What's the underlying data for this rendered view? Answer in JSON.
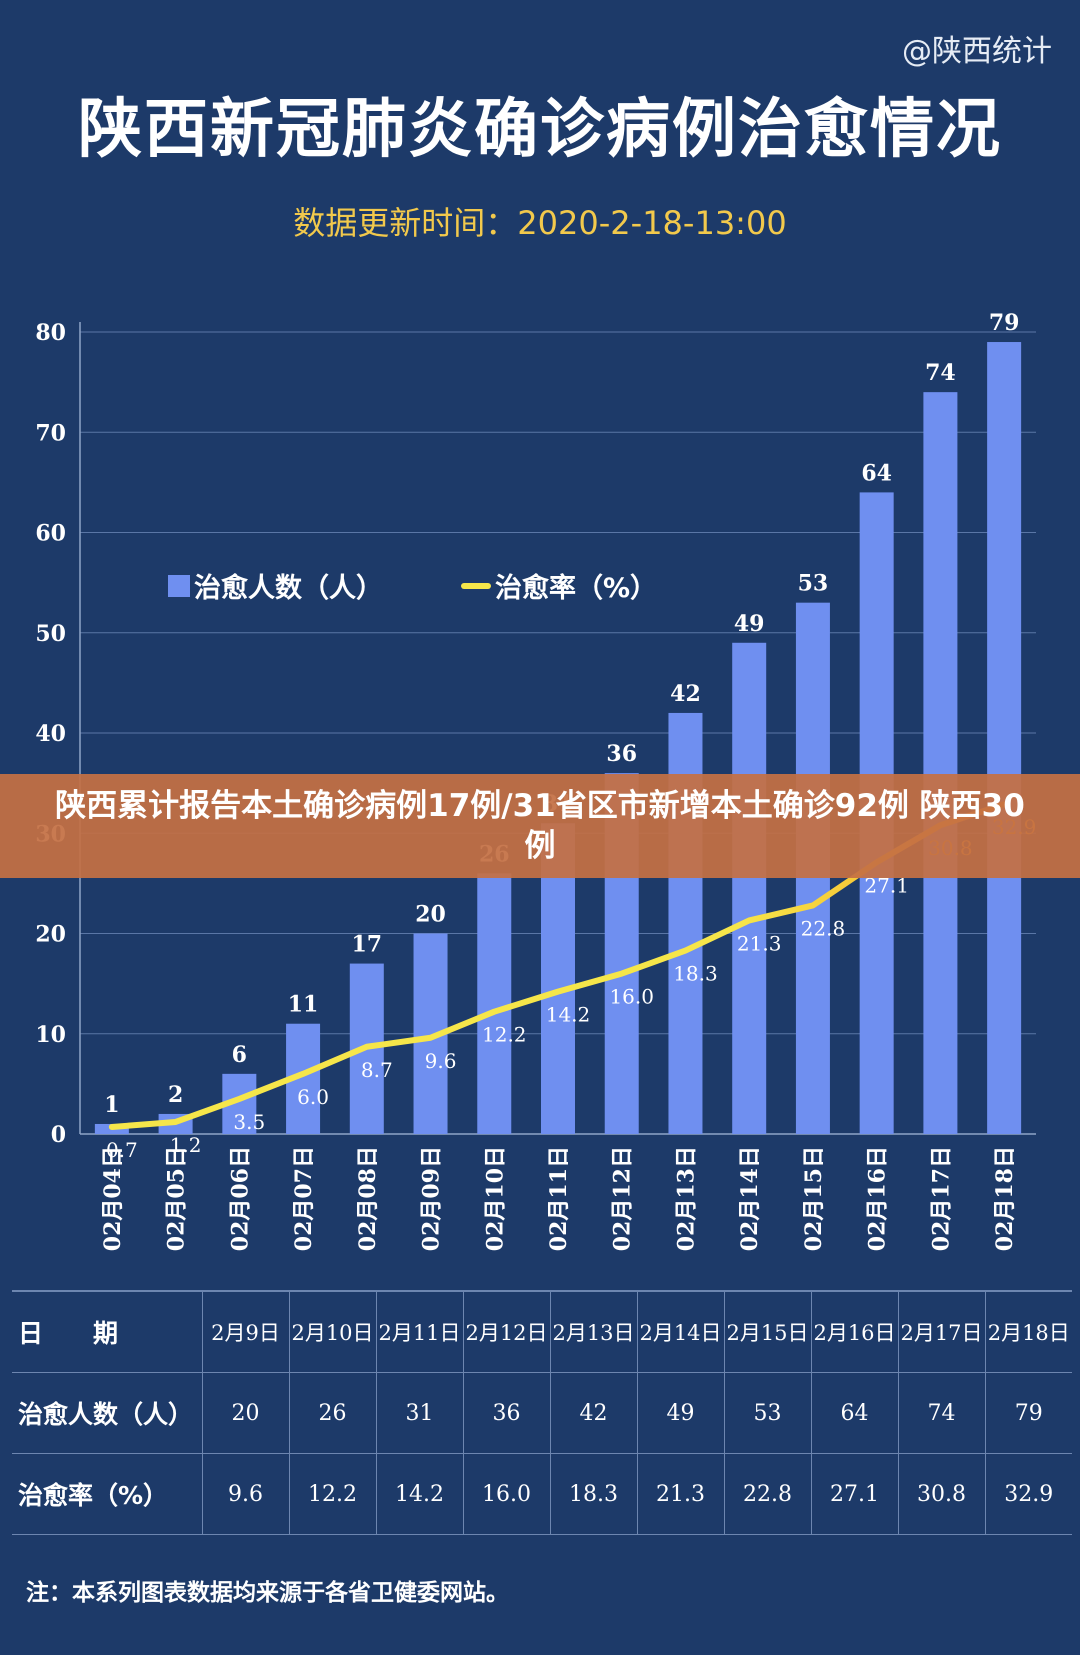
{
  "source_tag": "@陕西统计",
  "title": "陕西新冠肺炎确诊病例治愈情况",
  "update_time": "数据更新时间：2020-2-18-13:00",
  "legend": {
    "bars": "治愈人数（人）",
    "line": "治愈率（%）"
  },
  "banner": "陕西累计报告本土确诊病例17例/31省区市新增本土确诊92例 陕西30例",
  "chart_data": {
    "type": "bar",
    "categories": [
      "02月04日",
      "02月05日",
      "02月06日",
      "02月07日",
      "02月08日",
      "02月09日",
      "02月10日",
      "02月11日",
      "02月12日",
      "02月13日",
      "02月14日",
      "02月15日",
      "02月16日",
      "02月17日",
      "02月18日"
    ],
    "series": [
      {
        "name": "治愈人数（人）",
        "type": "bar",
        "values": [
          1,
          2,
          6,
          11,
          17,
          20,
          26,
          31,
          36,
          42,
          49,
          53,
          64,
          74,
          79
        ]
      },
      {
        "name": "治愈率（%）",
        "type": "line",
        "values": [
          0.7,
          1.2,
          3.5,
          6.0,
          8.7,
          9.6,
          12.2,
          14.2,
          16.0,
          18.3,
          21.3,
          22.8,
          27.1,
          30.8,
          32.9
        ]
      }
    ],
    "ylim": [
      0,
      80
    ],
    "yticks": [
      0,
      10,
      20,
      30,
      40,
      50,
      60,
      70,
      80
    ],
    "grid": true,
    "legend_position": "top-left",
    "colors": {
      "bar": "#6f8ff0",
      "line": "#f6e64a",
      "line_end": "#f5a623",
      "grid": "#5a76a6"
    }
  },
  "table": {
    "header_label": "日　　期",
    "dates": [
      "2月9日",
      "2月10日",
      "2月11日",
      "2月12日",
      "2月13日",
      "2月14日",
      "2月15日",
      "2月16日",
      "2月17日",
      "2月18日"
    ],
    "rows": [
      {
        "label": "治愈人数（人）",
        "values": [
          "20",
          "26",
          "31",
          "36",
          "42",
          "49",
          "53",
          "64",
          "74",
          "79"
        ]
      },
      {
        "label": "治愈率（%）",
        "values": [
          "9.6",
          "12.2",
          "14.2",
          "16.0",
          "18.3",
          "21.3",
          "22.8",
          "27.1",
          "30.8",
          "32.9"
        ]
      }
    ]
  },
  "note": "注：本系列图表数据均来源于各省卫健委网站。"
}
